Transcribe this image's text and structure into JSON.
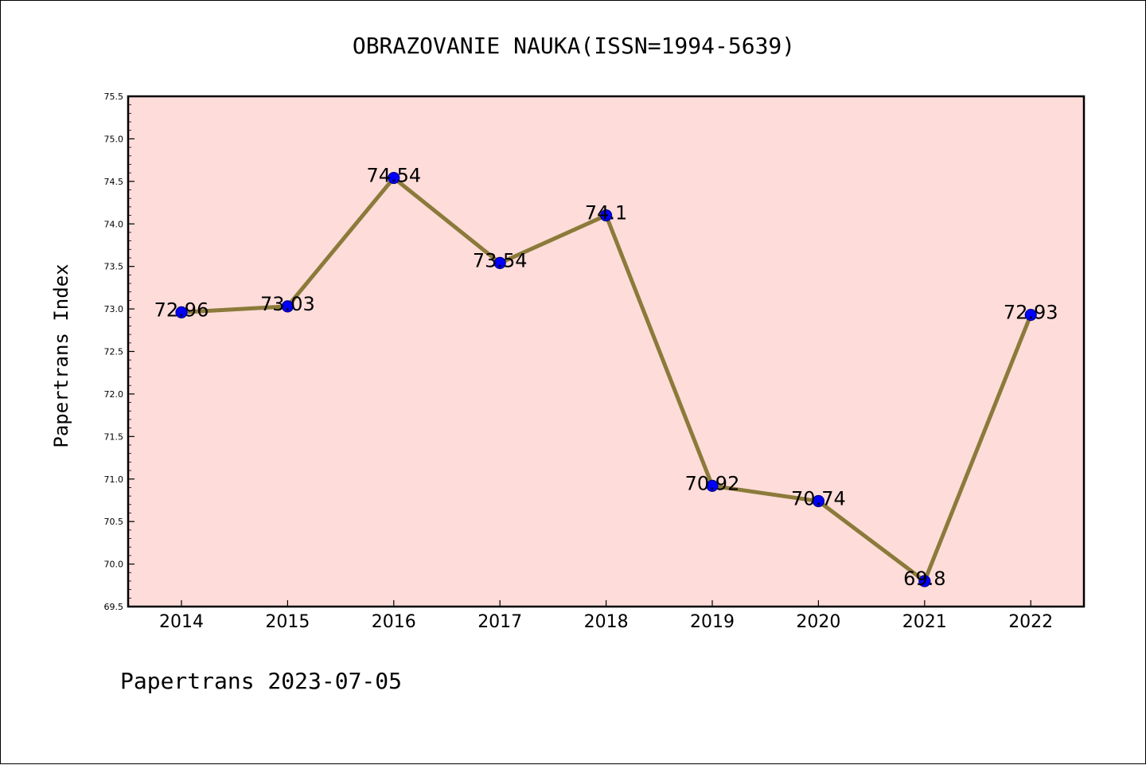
{
  "chart_data": {
    "type": "line",
    "title": "OBRAZOVANIE NAUKA(ISSN=1994-5639)",
    "xlabel": "",
    "ylabel": "Papertrans Index",
    "categories": [
      "2014",
      "2015",
      "2016",
      "2017",
      "2018",
      "2019",
      "2020",
      "2021",
      "2022"
    ],
    "series": [
      {
        "values": [
          72.96,
          73.03,
          74.54,
          73.54,
          74.1,
          70.92,
          70.74,
          69.8,
          72.93
        ]
      }
    ],
    "data_labels": [
      "72.96",
      "73.03",
      "74.54",
      "73.54",
      "74.1",
      "70.92",
      "70.74",
      "69.8",
      "72.93"
    ],
    "ylim": [
      69.5,
      75.5
    ],
    "yticks": [
      "69.5",
      "70.0",
      "70.5",
      "71.0",
      "71.5",
      "72.0",
      "72.5",
      "73.0",
      "73.5",
      "74.0",
      "74.5",
      "75.0",
      "75.5"
    ],
    "grid": false,
    "legend": "none",
    "colors": {
      "plot_background": "#fddcd9",
      "line": "#8b7a3a",
      "marker": "#0000ff",
      "marker_edge": "#00008b"
    }
  },
  "footer": {
    "text": "Papertrans 2023-07-05"
  }
}
